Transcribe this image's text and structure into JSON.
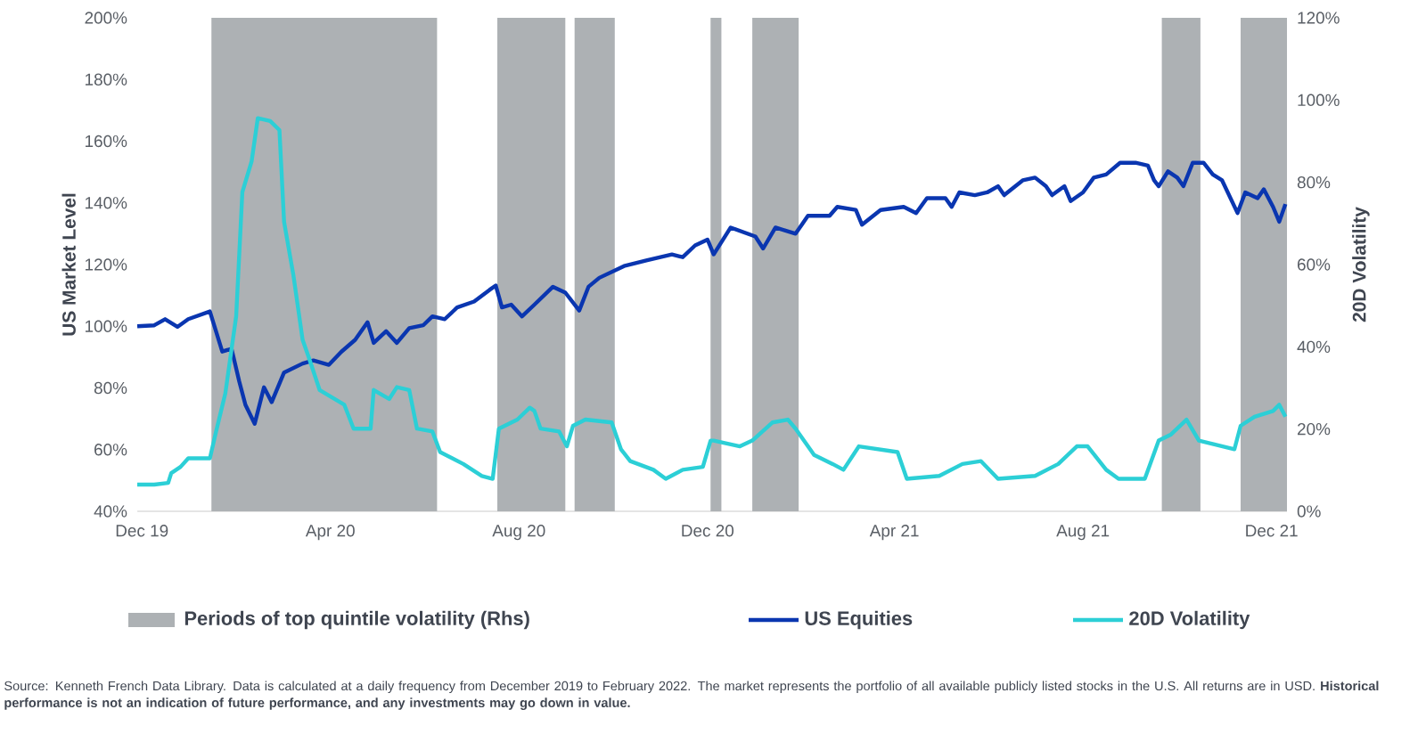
{
  "chart_data": {
    "type": "line",
    "ylabel": "US Market Level",
    "y2label": "20D Volatility",
    "xlim": [
      "2019-11-28",
      "2021-12-11"
    ],
    "xticks": [
      {
        "value": "2019-12-01",
        "label": "Dec 19"
      },
      {
        "value": "2020-04-01",
        "label": "Apr 20"
      },
      {
        "value": "2020-08-01",
        "label": "Aug 20"
      },
      {
        "value": "2020-12-01",
        "label": "Dec 20"
      },
      {
        "value": "2021-04-01",
        "label": "Apr 21"
      },
      {
        "value": "2021-08-01",
        "label": "Aug 21"
      },
      {
        "value": "2021-12-01",
        "label": "Dec 21"
      }
    ],
    "ylim": [
      40,
      200
    ],
    "yticks": [
      {
        "value": 40,
        "label": "40%"
      },
      {
        "value": 60,
        "label": "60%"
      },
      {
        "value": 80,
        "label": "80%"
      },
      {
        "value": 100,
        "label": "100%"
      },
      {
        "value": 120,
        "label": "120%"
      },
      {
        "value": 140,
        "label": "140%"
      },
      {
        "value": 160,
        "label": "160%"
      },
      {
        "value": 180,
        "label": "180%"
      },
      {
        "value": 200,
        "label": "200%"
      }
    ],
    "y2lim": [
      0,
      120
    ],
    "y2ticks": [
      {
        "value": 0,
        "label": "0%"
      },
      {
        "value": 20,
        "label": "20%"
      },
      {
        "value": 40,
        "label": "40%"
      },
      {
        "value": 60,
        "label": "60%"
      },
      {
        "value": 80,
        "label": "80%"
      },
      {
        "value": 100,
        "label": "100%"
      },
      {
        "value": 120,
        "label": "120%"
      }
    ],
    "bands": [
      {
        "axis": "x",
        "from": "2020-01-15",
        "to": "2020-06-09",
        "color": "#adb1b4",
        "label": "Periods of top quintile volatility (Rhs)"
      },
      {
        "axis": "x",
        "from": "2020-07-18",
        "to": "2020-08-31",
        "color": "#adb1b4"
      },
      {
        "axis": "x",
        "from": "2020-09-06",
        "to": "2020-10-02",
        "color": "#adb1b4"
      },
      {
        "axis": "x",
        "from": "2020-12-03",
        "to": "2020-12-10",
        "color": "#adb1b4"
      },
      {
        "axis": "x",
        "from": "2020-12-30",
        "to": "2021-01-29",
        "color": "#adb1b4"
      },
      {
        "axis": "x",
        "from": "2021-09-21",
        "to": "2021-10-16",
        "color": "#adb1b4"
      },
      {
        "axis": "x",
        "from": "2021-11-11",
        "to": "2021-12-11",
        "color": "#adb1b4"
      }
    ],
    "series": [
      {
        "name": "US Equities",
        "color": "#0a36b0",
        "x": [
          "2019-11-28",
          "2019-12-09",
          "2019-12-16",
          "2019-12-24",
          "2019-12-31",
          "2020-01-14",
          "2020-01-22",
          "2020-01-28",
          "2020-02-02",
          "2020-02-06",
          "2020-02-12",
          "2020-02-18",
          "2020-02-23",
          "2020-03-02",
          "2020-03-14",
          "2020-03-21",
          "2020-03-31",
          "2020-04-08",
          "2020-04-17",
          "2020-04-25",
          "2020-04-29",
          "2020-05-07",
          "2020-05-14",
          "2020-05-22",
          "2020-05-31",
          "2020-06-06",
          "2020-06-14",
          "2020-06-22",
          "2020-07-03",
          "2020-07-13",
          "2020-07-17",
          "2020-07-21",
          "2020-07-27",
          "2020-08-03",
          "2020-08-11",
          "2020-08-23",
          "2020-08-31",
          "2020-09-09",
          "2020-09-15",
          "2020-09-22",
          "2020-10-08",
          "2020-10-23",
          "2020-11-08",
          "2020-11-15",
          "2020-11-23",
          "2020-12-01",
          "2020-12-05",
          "2020-12-16",
          "2021-01-01",
          "2021-01-06",
          "2021-01-14",
          "2021-01-27",
          "2021-02-04",
          "2021-02-18",
          "2021-02-23",
          "2021-03-07",
          "2021-03-11",
          "2021-03-23",
          "2021-04-07",
          "2021-04-15",
          "2021-04-22",
          "2021-05-04",
          "2021-05-08",
          "2021-05-13",
          "2021-05-23",
          "2021-05-31",
          "2021-06-07",
          "2021-06-11",
          "2021-06-23",
          "2021-07-01",
          "2021-07-08",
          "2021-07-12",
          "2021-07-20",
          "2021-07-24",
          "2021-08-01",
          "2021-08-08",
          "2021-08-16",
          "2021-08-25",
          "2021-09-04",
          "2021-09-12",
          "2021-09-16",
          "2021-09-19",
          "2021-09-25",
          "2021-10-01",
          "2021-10-05",
          "2021-10-11",
          "2021-10-18",
          "2021-10-24",
          "2021-10-30",
          "2021-11-09",
          "2021-11-14",
          "2021-11-22",
          "2021-11-26",
          "2021-12-02",
          "2021-12-06",
          "2021-12-10"
        ],
        "values": [
          100,
          100.3,
          102.3,
          99.8,
          102.3,
          104.8,
          91.8,
          92.7,
          82.1,
          74.5,
          68.4,
          80.2,
          75.4,
          85,
          87.9,
          88.9,
          87.5,
          91.7,
          95.6,
          101.3,
          94.6,
          98.4,
          94.6,
          99.4,
          100.3,
          103.2,
          102.3,
          106.1,
          108,
          111.8,
          113.2,
          106.1,
          107,
          103.2,
          107,
          112.8,
          110.9,
          105.1,
          112.8,
          115.7,
          119.5,
          121.4,
          123.3,
          122.4,
          126.2,
          128.1,
          123.3,
          132,
          129.1,
          125.2,
          132,
          130,
          135.8,
          135.8,
          138.7,
          137.7,
          132.9,
          137.7,
          138.7,
          136.7,
          141.5,
          141.5,
          138.7,
          143.4,
          142.5,
          143.4,
          145.4,
          142.5,
          147.3,
          148.2,
          145.4,
          142.5,
          145.4,
          140.6,
          143.4,
          148.2,
          149.2,
          153,
          153,
          152.1,
          147.3,
          145.4,
          150.2,
          148.2,
          145.4,
          153,
          153,
          149.2,
          147.3,
          136.7,
          143.4,
          141.5,
          144.4,
          138.7,
          133.9,
          139.6
        ]
      },
      {
        "name": "20D Volatility",
        "color": "#2ccfd6",
        "axis": "y2",
        "x": [
          "2019-11-28",
          "2019-12-09",
          "2019-12-18",
          "2019-12-20",
          "2019-12-26",
          "2019-12-31",
          "2020-01-14",
          "2020-01-18",
          "2020-01-24",
          "2020-01-31",
          "2020-02-04",
          "2020-02-10",
          "2020-02-14",
          "2020-02-22",
          "2020-02-28",
          "2020-03-02",
          "2020-03-08",
          "2020-03-14",
          "2020-03-18",
          "2020-03-25",
          "2020-04-10",
          "2020-04-16",
          "2020-04-27",
          "2020-04-29",
          "2020-05-09",
          "2020-05-14",
          "2020-05-22",
          "2020-05-27",
          "2020-06-06",
          "2020-06-11",
          "2020-06-26",
          "2020-07-08",
          "2020-07-15",
          "2020-07-19",
          "2020-07-31",
          "2020-08-08",
          "2020-08-11",
          "2020-08-15",
          "2020-08-27",
          "2020-09-01",
          "2020-09-05",
          "2020-09-13",
          "2020-09-30",
          "2020-10-06",
          "2020-10-12",
          "2020-10-27",
          "2020-11-04",
          "2020-11-15",
          "2020-11-28",
          "2020-12-03",
          "2020-12-05",
          "2020-12-22",
          "2020-12-30",
          "2021-01-12",
          "2021-01-22",
          "2021-01-27",
          "2021-02-08",
          "2021-02-20",
          "2021-02-27",
          "2021-03-09",
          "2021-04-03",
          "2021-04-09",
          "2021-04-30",
          "2021-05-15",
          "2021-05-27",
          "2021-06-07",
          "2021-07-01",
          "2021-07-16",
          "2021-07-28",
          "2021-08-04",
          "2021-08-16",
          "2021-08-24",
          "2021-09-10",
          "2021-09-19",
          "2021-09-27",
          "2021-10-07",
          "2021-10-15",
          "2021-11-07",
          "2021-11-11",
          "2021-11-20",
          "2021-12-02",
          "2021-12-06",
          "2021-12-10"
        ],
        "values": [
          6.5,
          6.5,
          6.9,
          9.3,
          10.8,
          12.9,
          12.9,
          19.4,
          28.7,
          47.4,
          77.6,
          85.1,
          95.6,
          94.9,
          92.7,
          70.4,
          57.5,
          41.7,
          37.4,
          29.5,
          25.9,
          20.1,
          20.1,
          29.5,
          27.3,
          30.2,
          29.5,
          20.1,
          19.4,
          14.4,
          11.5,
          8.6,
          7.9,
          20.1,
          22.3,
          25.2,
          24.4,
          20.1,
          19.4,
          15.8,
          20.8,
          22.3,
          21.6,
          15.1,
          12.2,
          10.1,
          7.9,
          10.1,
          10.8,
          17.2,
          17.2,
          15.8,
          17.2,
          21.6,
          22.3,
          20.1,
          13.7,
          11.5,
          10.1,
          15.8,
          14.4,
          7.9,
          8.6,
          11.5,
          12.2,
          7.9,
          8.6,
          11.5,
          15.8,
          15.8,
          10.1,
          7.9,
          7.9,
          17.2,
          18.7,
          22.3,
          17.2,
          15.1,
          20.8,
          23,
          24.4,
          25.9,
          23
        ]
      }
    ],
    "legend": "bottom",
    "annotations": [
      "Source: Kenneth French Data Library. Data is calculated at a daily frequency from December 2019 to February 2022. The market represents the portfolio of all available publicly listed stocks in the U.S. All returns are in USD. **Historical performance is not an indication of future performance, and any investments may go down in value.**"
    ]
  }
}
